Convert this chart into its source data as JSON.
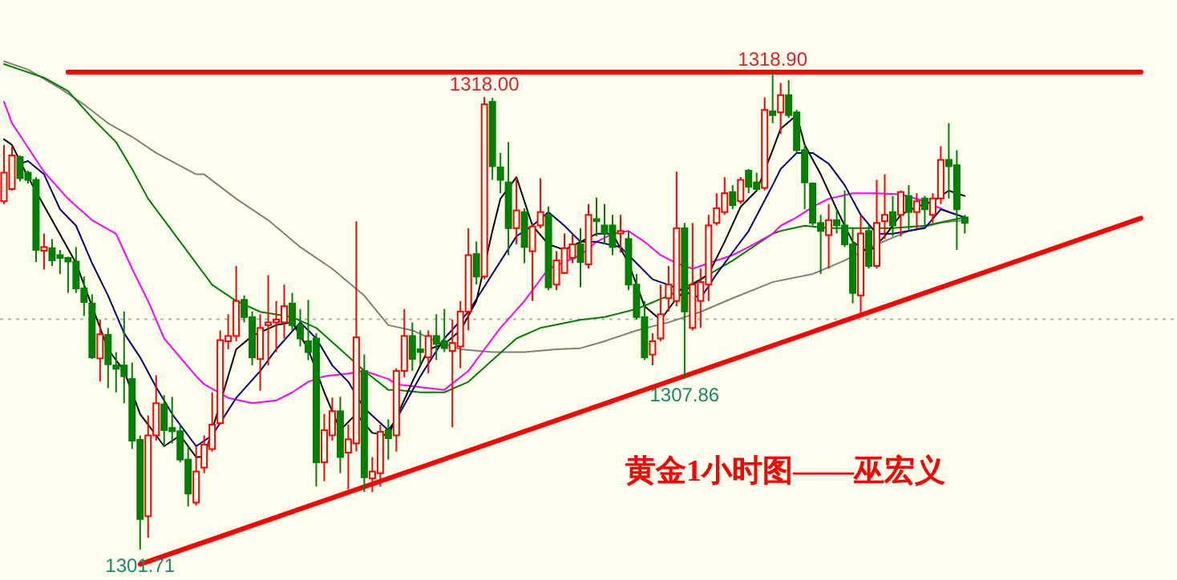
{
  "chart_data": {
    "type": "candlestick",
    "title": "黄金1小时图——巫宏义",
    "categories": [
      null,
      null,
      null,
      null,
      null,
      null,
      null,
      null,
      null,
      null,
      null,
      null,
      null,
      null,
      null,
      null,
      null,
      null,
      null,
      null,
      null,
      null,
      null,
      null,
      null,
      null,
      null,
      null,
      null,
      null,
      null,
      null,
      null,
      null,
      null,
      null,
      null,
      null,
      null,
      null,
      null,
      null,
      null,
      null,
      null,
      null,
      null,
      null,
      null,
      null,
      null,
      null,
      null,
      null,
      null,
      null,
      null,
      null,
      null,
      null,
      null,
      null,
      null,
      null,
      null,
      null,
      null,
      null,
      null,
      null,
      null,
      null,
      null,
      null,
      null,
      null,
      null,
      null,
      null,
      null,
      null,
      null,
      null,
      null,
      null,
      null,
      null,
      null,
      null,
      null,
      null,
      null,
      null,
      null,
      null,
      null,
      null,
      null,
      null,
      null,
      null,
      null,
      null,
      null,
      null,
      null,
      null,
      null,
      null,
      null,
      null,
      null,
      null,
      null,
      null,
      null,
      null,
      null,
      null,
      null,
      null,
      null,
      null,
      null,
      null,
      null,
      null,
      null,
      null,
      null,
      null,
      null,
      null,
      null,
      null,
      null,
      null,
      null,
      null,
      null,
      null,
      null,
      null,
      null,
      null,
      null,
      null
    ],
    "ohlc": [
      [
        1314.25,
        1316.28,
        1314.15,
        1315.28
      ],
      [
        1314.69,
        1316.23,
        1314.64,
        1315.9
      ],
      [
        1315.84,
        1315.9,
        1314.97,
        1315.08
      ],
      [
        1315.28,
        1315.35,
        1314.89,
        1315.02
      ],
      [
        1315.02,
        1315.12,
        1312.06,
        1312.5
      ],
      [
        1312.47,
        1313.09,
        1311.79,
        1312.6
      ],
      [
        1312.56,
        1312.89,
        1311.92,
        1312.12
      ],
      [
        1312.31,
        1312.5,
        1311.63,
        1312.21
      ],
      [
        1312.21,
        1312.25,
        1310.95,
        1312.08
      ],
      [
        1312.08,
        1312.6,
        1310.95,
        1311.11
      ],
      [
        1311.11,
        1311.54,
        1310.12,
        1310.62
      ],
      [
        1310.57,
        1310.9,
        1308.57,
        1308.63
      ],
      [
        1308.59,
        1309.99,
        1307.76,
        1309.46
      ],
      [
        1309.44,
        1309.69,
        1307.52,
        1308.38
      ],
      [
        1308.34,
        1308.82,
        1307.37,
        1308.22
      ],
      [
        1308.34,
        1310.28,
        1306.98,
        1307.95
      ],
      [
        1307.85,
        1308.44,
        1305.33,
        1305.63
      ],
      [
        1305.66,
        1305.82,
        1301.71,
        1302.81
      ],
      [
        1302.91,
        1306.54,
        1302.14,
        1305.82
      ],
      [
        1305.82,
        1307.99,
        1305.63,
        1306.98
      ],
      [
        1306.94,
        1307.27,
        1305.43,
        1306.01
      ],
      [
        1306.09,
        1307.21,
        1305.53,
        1305.97
      ],
      [
        1305.97,
        1306.21,
        1304.85,
        1304.95
      ],
      [
        1304.95,
        1305.43,
        1303.26,
        1303.73
      ],
      [
        1303.4,
        1305.43,
        1303.3,
        1304.52
      ],
      [
        1304.66,
        1305.82,
        1304.46,
        1305.49
      ],
      [
        1305.33,
        1307.37,
        1305.24,
        1306.21
      ],
      [
        1306.26,
        1309.6,
        1306.21,
        1309.25
      ],
      [
        1309.21,
        1310.18,
        1308.92,
        1309.4
      ],
      [
        1309.4,
        1311.92,
        1309.21,
        1310.66
      ],
      [
        1310.7,
        1310.86,
        1309.89,
        1310.08
      ],
      [
        1310.08,
        1310.28,
        1308.34,
        1308.63
      ],
      [
        1308.57,
        1310.18,
        1307.43,
        1309.69
      ],
      [
        1309.79,
        1311.59,
        1308.34,
        1309.89
      ],
      [
        1309.89,
        1310.66,
        1308.82,
        1309.99
      ],
      [
        1309.89,
        1311.25,
        1309.31,
        1310.47
      ],
      [
        1310.57,
        1310.95,
        1309.6,
        1309.79
      ],
      [
        1309.79,
        1310.37,
        1309.02,
        1309.31
      ],
      [
        1309.21,
        1310.7,
        1308.53,
        1308.82
      ],
      [
        1309.31,
        1309.5,
        1303.98,
        1304.85
      ],
      [
        1304.85,
        1306.59,
        1304.17,
        1306.01
      ],
      [
        1305.82,
        1307.18,
        1305.63,
        1306.69
      ],
      [
        1306.69,
        1307.21,
        1304.46,
        1305.04
      ],
      [
        1305.2,
        1306.21,
        1303.88,
        1305.68
      ],
      [
        1305.53,
        1313.53,
        1305.24,
        1309.35
      ],
      [
        1308.14,
        1308.73,
        1303.78,
        1304.31
      ],
      [
        1304.27,
        1305.04,
        1303.78,
        1304.52
      ],
      [
        1304.46,
        1306.21,
        1303.98,
        1305.95
      ],
      [
        1306.01,
        1306.4,
        1304.95,
        1305.72
      ],
      [
        1305.82,
        1308.24,
        1305.24,
        1308.14
      ],
      [
        1308.14,
        1310.37,
        1307.91,
        1309.4
      ],
      [
        1309.4,
        1309.89,
        1308.14,
        1308.57
      ],
      [
        1308.92,
        1309.6,
        1308.34,
        1308.82
      ],
      [
        1308.63,
        1309.6,
        1308.05,
        1309.4
      ],
      [
        1309.4,
        1310.18,
        1308.53,
        1309.11
      ],
      [
        1309.21,
        1310.37,
        1308.82,
        1308.96
      ],
      [
        1308.86,
        1309.99,
        1306.11,
        1309.15
      ],
      [
        1309.02,
        1310.66,
        1308.24,
        1310.28
      ],
      [
        1310.28,
        1313.28,
        1309.6,
        1312.31
      ],
      [
        1312.35,
        1312.8,
        1311.25,
        1311.54
      ],
      [
        1311.54,
        1318.0,
        1311.44,
        1317.74
      ],
      [
        1317.83,
        1317.97,
        1315.02,
        1315.51
      ],
      [
        1315.47,
        1315.99,
        1314.54,
        1315.02
      ],
      [
        1314.93,
        1316.38,
        1312.31,
        1313.28
      ],
      [
        1313.28,
        1315.12,
        1312.7,
        1313.92
      ],
      [
        1313.86,
        1314.0,
        1312.02,
        1312.6
      ],
      [
        1312.45,
        1313.47,
        1310.66,
        1313.34
      ],
      [
        1313.38,
        1315.08,
        1313.28,
        1313.86
      ],
      [
        1313.76,
        1314.06,
        1311.05,
        1311.15
      ],
      [
        1311.25,
        1312.45,
        1311.05,
        1312.12
      ],
      [
        1311.67,
        1313.09,
        1311.63,
        1312.56
      ],
      [
        1312.21,
        1313.09,
        1312.02,
        1312.7
      ],
      [
        1312.7,
        1313.28,
        1311.15,
        1312.06
      ],
      [
        1311.98,
        1314.15,
        1311.83,
        1313.76
      ],
      [
        1313.61,
        1314.38,
        1312.99,
        1313.53
      ],
      [
        1313.38,
        1314.15,
        1312.7,
        1313.09
      ],
      [
        1313.38,
        1313.76,
        1312.31,
        1312.6
      ],
      [
        1313.09,
        1313.76,
        1312.41,
        1313.18
      ],
      [
        1312.89,
        1313.18,
        1311.05,
        1311.25
      ],
      [
        1311.25,
        1311.63,
        1309.99,
        1310.08
      ],
      [
        1310.08,
        1310.66,
        1308.53,
        1308.63
      ],
      [
        1308.73,
        1309.5,
        1308.34,
        1309.21
      ],
      [
        1309.31,
        1311.25,
        1309.21,
        1310.18
      ],
      [
        1310.76,
        1311.92,
        1310.28,
        1311.25
      ],
      [
        1310.66,
        1315.32,
        1310.47,
        1313.28
      ],
      [
        1313.28,
        1313.47,
        1307.86,
        1310.28
      ],
      [
        1309.69,
        1313.47,
        1309.6,
        1311.25
      ],
      [
        1310.66,
        1311.83,
        1309.69,
        1311.34
      ],
      [
        1311.25,
        1313.76,
        1310.66,
        1313.38
      ],
      [
        1313.47,
        1314.54,
        1313.38,
        1314.0
      ],
      [
        1313.86,
        1315.12,
        1313.76,
        1314.54
      ],
      [
        1314.58,
        1314.83,
        1313.96,
        1314.11
      ],
      [
        1314.25,
        1315.12,
        1314.15,
        1315.02
      ],
      [
        1315.35,
        1315.41,
        1314.54,
        1314.77
      ],
      [
        1314.93,
        1315.28,
        1314.64,
        1314.69
      ],
      [
        1314.73,
        1317.99,
        1314.64,
        1317.54
      ],
      [
        1317.49,
        1318.9,
        1317.06,
        1317.35
      ],
      [
        1317.45,
        1318.51,
        1316.67,
        1318.07
      ],
      [
        1318.07,
        1318.61,
        1317.25,
        1317.35
      ],
      [
        1317.45,
        1317.54,
        1315.99,
        1316.09
      ],
      [
        1316.09,
        1316.28,
        1313.96,
        1314.93
      ],
      [
        1314.89,
        1314.93,
        1313.38,
        1313.47
      ],
      [
        1313.47,
        1313.76,
        1311.63,
        1313.18
      ],
      [
        1313.03,
        1314.15,
        1311.83,
        1313.57
      ],
      [
        1313.57,
        1313.96,
        1313.09,
        1313.38
      ],
      [
        1313.38,
        1314.64,
        1312.6,
        1312.7
      ],
      [
        1312.7,
        1313.28,
        1310.57,
        1310.95
      ],
      [
        1310.86,
        1313.76,
        1310.12,
        1313.09
      ],
      [
        1313.18,
        1313.38,
        1311.83,
        1311.92
      ],
      [
        1311.92,
        1315.02,
        1311.83,
        1313.47
      ],
      [
        1313.53,
        1315.22,
        1312.89,
        1313.76
      ],
      [
        1313.86,
        1314.44,
        1312.99,
        1313.38
      ],
      [
        1313.76,
        1314.64,
        1312.99,
        1314.58
      ],
      [
        1314.44,
        1314.83,
        1313.18,
        1313.86
      ],
      [
        1313.86,
        1314.54,
        1313.28,
        1314.25
      ],
      [
        1314.35,
        1314.44,
        1313.38,
        1313.96
      ],
      [
        1313.76,
        1314.54,
        1313.47,
        1314.35
      ],
      [
        1314.35,
        1316.23,
        1314.15,
        1315.74
      ],
      [
        1315.74,
        1317.06,
        1314.35,
        1315.51
      ],
      [
        1315.55,
        1316.09,
        1312.5,
        1313.96
      ],
      [
        1313.67,
        1313.76,
        1313.09,
        1313.47
      ],
      null,
      null,
      null,
      null,
      null,
      null,
      null,
      null,
      null,
      null,
      null,
      null,
      null,
      null,
      null,
      null,
      null,
      null,
      null,
      null,
      null,
      null,
      null,
      null,
      null,
      null
    ],
    "series": [
      {
        "type": "line",
        "color": "#808080",
        "values": [
          1319.29,
          null,
          null,
          1318.99,
          null,
          null,
          null,
          1318.32,
          null,
          null,
          1317.73,
          null,
          null,
          1317.06,
          null,
          null,
          1316.57,
          null,
          null,
          1315.99,
          null,
          null,
          null,
          null,
          1315.22,
          1315.22,
          null,
          null,
          null,
          1314.34,
          null,
          null,
          null,
          1313.57,
          null,
          null,
          null,
          1312.6,
          null,
          null,
          null,
          1311.82,
          null,
          null,
          null,
          1310.85,
          null,
          null,
          1309.79,
          null,
          null,
          1309.6,
          null,
          null,
          1309.21,
          null,
          null,
          1308.92,
          null,
          null,
          null,
          1308.82,
          null,
          null,
          null,
          1308.82,
          null,
          null,
          null,
          1308.92,
          null,
          null,
          1308.96,
          null,
          null,
          1309.21,
          null,
          null,
          null,
          1309.6,
          null,
          null,
          null,
          1309.89,
          null,
          null,
          null,
          1310.27,
          null,
          null,
          null,
          1310.76,
          null,
          null,
          null,
          null,
          1311.34,
          null,
          null,
          null,
          null,
          1311.63,
          null,
          null,
          null,
          1312.12,
          null,
          null,
          null,
          1312.7,
          null,
          null,
          null,
          1313.18,
          null,
          null,
          null,
          1313.48,
          null,
          null,
          1313.57,
          null,
          null,
          null,
          null,
          null,
          null,
          null,
          null,
          null,
          null,
          null,
          null,
          null,
          null,
          null,
          null,
          null,
          null,
          null,
          null,
          null,
          null,
          null,
          null,
          null,
          null
        ]
      },
      {
        "type": "line",
        "color": "#008000",
        "values": [
          1319.19,
          null,
          1318.99,
          null,
          null,
          1318.7,
          null,
          null,
          1318.22,
          null,
          null,
          1317.25,
          null,
          null,
          1316.38,
          null,
          1315.41,
          null,
          1314.34,
          null,
          1313.57,
          null,
          null,
          null,
          1312.02,
          null,
          1311.24,
          null,
          null,
          1310.66,
          null,
          null,
          1310.27,
          null,
          null,
          null,
          1310.08,
          null,
          null,
          1309.69,
          null,
          null,
          1308.92,
          null,
          null,
          1308.14,
          null,
          null,
          1307.46,
          1307.46,
          null,
          null,
          1307.37,
          null,
          null,
          1307.37,
          null,
          null,
          1307.75,
          null,
          null,
          1308.53,
          null,
          null,
          1309.31,
          null,
          null,
          1309.69,
          null,
          null,
          null,
          null,
          1309.98,
          null,
          null,
          1310.08,
          null,
          null,
          null,
          1310.37,
          null,
          null,
          null,
          1310.85,
          null,
          null,
          null,
          1311.44,
          null,
          null,
          null,
          1312.11,
          null,
          null,
          null,
          null,
          1313.08,
          1313.18,
          null,
          null,
          1313.37,
          null,
          null,
          1313.28,
          null,
          null,
          null,
          1313.28,
          null,
          null,
          null,
          1313.28,
          null,
          null,
          null,
          1313.37,
          null,
          null,
          null,
          null,
          1313.67,
          null,
          null,
          null,
          null,
          null,
          null,
          null,
          null,
          null,
          null,
          null,
          null,
          null,
          null,
          null,
          null,
          null,
          null,
          null,
          null,
          null,
          null,
          null,
          null,
          null,
          null
        ]
      },
      {
        "type": "line",
        "color": "#ff00ff",
        "values": [
          1317.83,
          1317.06,
          null,
          null,
          null,
          1315.31,
          null,
          null,
          1314.34,
          null,
          null,
          1313.57,
          null,
          null,
          1313.08,
          null,
          1311.82,
          null,
          1310.66,
          null,
          1309.31,
          null,
          null,
          null,
          1307.95,
          1307.66,
          null,
          null,
          1307.17,
          null,
          null,
          1306.98,
          null,
          null,
          1307.08,
          null,
          1307.37,
          null,
          1307.75,
          null,
          1307.95,
          null,
          null,
          1308.05,
          null,
          1308.14,
          null,
          null,
          1307.85,
          1307.66,
          null,
          null,
          1307.56,
          null,
          null,
          1307.46,
          null,
          null,
          1308.14,
          null,
          1308.92,
          null,
          1309.69,
          null,
          null,
          1310.66,
          null,
          null,
          1311.82,
          null,
          null,
          null,
          1312.31,
          null,
          1312.79,
          null,
          1313.08,
          null,
          1313.18,
          null,
          1312.79,
          null,
          1312.31,
          null,
          1312.02,
          null,
          1311.82,
          null,
          1312.02,
          null,
          null,
          1312.31,
          null,
          1312.6,
          null,
          null,
          1313.08,
          1313.37,
          null,
          1313.67,
          null,
          1314.05,
          null,
          1314.34,
          null,
          null,
          1314.54,
          null,
          null,
          1314.54,
          null,
          null,
          1314.5,
          null,
          null,
          1314.25,
          null,
          null,
          1313.86,
          null,
          1313.67,
          null,
          null,
          null,
          null,
          null,
          null,
          null,
          null,
          null,
          null,
          null,
          null,
          null,
          null,
          null,
          null,
          null,
          null,
          null,
          null,
          null,
          null,
          null,
          null,
          null,
          null
        ]
      },
      {
        "type": "line",
        "color": "#000080",
        "values": [
          null,
          null,
          1315.6,
          1315.7,
          null,
          1315.22,
          null,
          1313.96,
          null,
          1313.37,
          null,
          1312.02,
          null,
          1310.85,
          null,
          1309.5,
          null,
          1308.63,
          null,
          1307.56,
          null,
          1306.59,
          null,
          null,
          1305.43,
          null,
          1305.82,
          null,
          null,
          1307.17,
          null,
          null,
          1308.14,
          null,
          1308.92,
          null,
          null,
          1309.89,
          null,
          1309.31,
          null,
          1308.34,
          null,
          1307.75,
          null,
          1306.79,
          null,
          null,
          1306.01,
          1306.4,
          null,
          null,
          1307.95,
          null,
          null,
          1309.31,
          null,
          null,
          1310.27,
          null,
          null,
          1311.63,
          null,
          null,
          1312.99,
          null,
          1313.37,
          null,
          1313.86,
          null,
          1313.37,
          null,
          1312.79,
          null,
          1312.79,
          null,
          null,
          1312.6,
          null,
          1312.02,
          null,
          1311.44,
          null,
          1311.24,
          null,
          null,
          null,
          1310.76,
          null,
          1311.63,
          null,
          1312.41,
          null,
          1313.18,
          null,
          null,
          1314.83,
          1315.41,
          null,
          1315.99,
          null,
          1315.99,
          null,
          1315.6,
          null,
          1314.83,
          null,
          1313.76,
          null,
          1313.08,
          null,
          1313.08,
          null,
          1313.18,
          null,
          1313.28,
          null,
          1313.96,
          null,
          null,
          1313.67,
          null,
          null,
          null,
          null,
          null,
          null,
          null,
          null,
          null,
          null,
          null,
          null,
          null,
          null,
          null,
          null,
          null,
          null,
          null,
          null,
          null,
          null,
          null,
          null,
          null,
          null
        ]
      },
      {
        "type": "line",
        "color": "#000000",
        "values": [
          1316.48,
          1316.28,
          null,
          1315.12,
          null,
          null,
          1313.57,
          null,
          null,
          1312.02,
          null,
          1310.47,
          null,
          1308.92,
          null,
          1308.14,
          null,
          1306.59,
          null,
          1305.82,
          1305.43,
          null,
          1305.82,
          null,
          1305.04,
          1305.04,
          null,
          null,
          null,
          1308.92,
          null,
          1309.4,
          null,
          null,
          1309.79,
          null,
          1309.89,
          null,
          1308.92,
          null,
          1307.37,
          null,
          1306.01,
          null,
          1306.59,
          null,
          1305.91,
          null,
          1305.82,
          null,
          null,
          1307.75,
          null,
          1308.92,
          null,
          1309.11,
          null,
          1309.6,
          null,
          1310.66,
          null,
          1313.18,
          1314.34,
          null,
          1315.12,
          null,
          1313.37,
          null,
          1312.7,
          null,
          1312.5,
          null,
          1312.79,
          null,
          1313.08,
          null,
          1313.08,
          null,
          1312.02,
          null,
          1310.47,
          null,
          1309.98,
          null,
          1310.76,
          null,
          1311.24,
          null,
          1311.63,
          null,
          1312.79,
          null,
          1314.05,
          null,
          1314.63,
          null,
          1316.09,
          1316.86,
          null,
          1317.35,
          1316.28,
          null,
          1315.22,
          null,
          1313.96,
          null,
          1312.79,
          null,
          1312.41,
          null,
          1312.99,
          null,
          1313.76,
          null,
          1314.05,
          null,
          1314.25,
          null,
          1314.63,
          null,
          1314.44,
          null,
          null,
          null,
          null,
          null,
          null,
          null,
          null,
          null,
          null,
          null,
          null,
          null,
          null,
          null,
          null,
          null,
          null,
          null,
          null,
          null,
          null,
          null,
          null,
          null,
          null
        ]
      },
      {
        "type": "line",
        "color": "#ff0000",
        "values": [
          null,
          null,
          null,
          null,
          null,
          null,
          null,
          null,
          1318.9,
          null,
          null,
          null,
          null,
          null,
          null,
          null,
          null,
          null,
          null,
          null,
          null,
          null,
          null,
          null,
          null,
          null,
          null,
          null,
          null,
          null,
          null,
          null,
          null,
          null,
          null,
          null,
          null,
          null,
          null,
          null,
          null,
          null,
          null,
          null,
          null,
          null,
          null,
          null,
          null,
          null,
          null,
          null,
          null,
          null,
          null,
          null,
          null,
          null,
          null,
          null,
          null,
          null,
          null,
          null,
          null,
          null,
          null,
          null,
          null,
          null,
          null,
          null,
          null,
          null,
          null,
          null,
          null,
          null,
          null,
          null,
          null,
          null,
          null,
          null,
          null,
          null,
          null,
          null,
          null,
          null,
          null,
          null,
          null,
          null,
          null,
          null,
          null,
          null,
          null,
          null,
          null,
          null,
          null,
          null,
          null,
          null,
          null,
          null,
          null,
          null,
          null,
          null,
          null,
          null,
          null,
          null,
          null,
          null,
          null,
          null,
          null,
          null,
          null,
          null,
          null,
          null,
          null,
          null,
          null,
          null,
          null,
          null,
          null,
          null,
          null,
          null,
          null,
          null,
          null,
          null,
          null,
          null,
          1318.9,
          null,
          null,
          null,
          null
        ]
      },
      {
        "type": "line",
        "color": "#ff0000",
        "values": [
          null,
          null,
          null,
          null,
          null,
          null,
          null,
          null,
          null,
          null,
          null,
          null,
          null,
          null,
          null,
          null,
          null,
          1301.18,
          null,
          null,
          null,
          null,
          null,
          null,
          null,
          null,
          null,
          null,
          null,
          null,
          null,
          null,
          null,
          null,
          null,
          null,
          null,
          null,
          null,
          null,
          null,
          null,
          null,
          null,
          null,
          null,
          null,
          null,
          null,
          null,
          null,
          null,
          null,
          null,
          null,
          null,
          null,
          null,
          null,
          null,
          null,
          null,
          null,
          null,
          null,
          null,
          null,
          null,
          null,
          null,
          null,
          null,
          null,
          null,
          null,
          null,
          null,
          null,
          null,
          null,
          null,
          null,
          null,
          null,
          null,
          null,
          null,
          null,
          null,
          null,
          null,
          null,
          null,
          null,
          null,
          null,
          null,
          null,
          null,
          null,
          null,
          null,
          null,
          null,
          null,
          null,
          null,
          null,
          null,
          null,
          null,
          null,
          null,
          null,
          null,
          null,
          null,
          null,
          null,
          null,
          null,
          null,
          null,
          null,
          null,
          null,
          null,
          null,
          null,
          null,
          null,
          null,
          null,
          null,
          null,
          null,
          null,
          null,
          null,
          null,
          null,
          null,
          1313.64,
          null,
          null,
          null,
          null
        ]
      }
    ],
    "ref_lines": [
      {
        "axis": "y",
        "value": 1310.0,
        "color": "#b0b0b0",
        "line_style": "dotted"
      }
    ],
    "annotations": [
      {
        "text": "1318.00",
        "y": 1318.0
      },
      {
        "text": "1318.90",
        "y": 1318.9
      },
      {
        "text": "1307.86",
        "y": 1307.86
      },
      {
        "text": "1301.71",
        "y": 1301.71
      }
    ]
  }
}
